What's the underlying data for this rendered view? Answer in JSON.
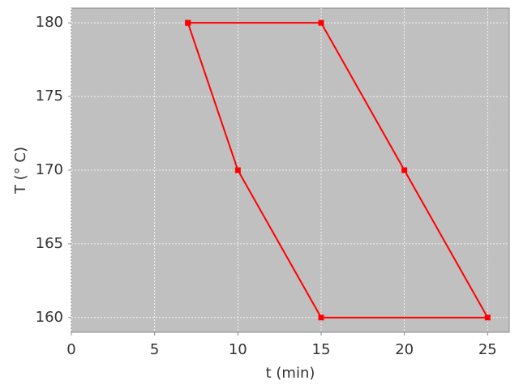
{
  "chart_data": {
    "type": "line",
    "xlabel": "t (min)",
    "ylabel": "T (° C)",
    "x": [
      7,
      15,
      20,
      25,
      15,
      10,
      7
    ],
    "values": [
      180,
      180,
      170,
      160,
      160,
      170,
      180
    ],
    "color": "#ff0000",
    "xlim": [
      0,
      26.3
    ],
    "xticks": [
      0,
      5,
      10,
      15,
      20,
      25
    ],
    "ylim": [
      159,
      181
    ],
    "yticks": [
      160,
      165,
      170,
      175,
      180
    ],
    "grid": true
  }
}
